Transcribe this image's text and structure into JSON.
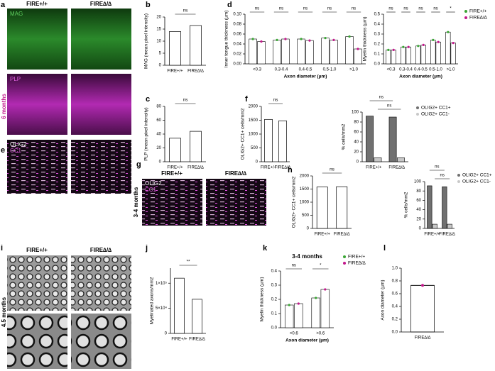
{
  "panel_letters": [
    "a",
    "b",
    "c",
    "d",
    "e",
    "f",
    "g",
    "h",
    "i",
    "j",
    "k",
    "l"
  ],
  "images": {
    "a": {
      "headers": [
        "FIRE+/+",
        "FIRE∆/∆"
      ],
      "stains": [
        "MAG",
        "PLP"
      ],
      "age": "6 months"
    },
    "e": {
      "stains": [
        "OLIG2",
        "CC1"
      ]
    },
    "g": {
      "headers": [
        "FIRE+/+",
        "FIRE∆/∆"
      ],
      "stains": [
        "OLIG2",
        "CC1"
      ],
      "age": "3-4 months"
    },
    "i": {
      "headers": [
        "FIRE+/+",
        "FIRE∆/∆"
      ],
      "age": "4.5 months"
    }
  },
  "chart_data": [
    {
      "type": "bar",
      "ylabel": "MAG (mean pixel intensity)",
      "categories": [
        "FIRE+/+",
        "FIRE∆/∆"
      ],
      "values": [
        14,
        16.5
      ],
      "color": "#ffffff",
      "ylim": [
        0,
        20
      ],
      "yticks": [
        0,
        5,
        10,
        15,
        20
      ],
      "comparison": "ns"
    },
    {
      "type": "bar",
      "ylabel": "PLP (mean pixel intensity)",
      "categories": [
        "FIRE+/+",
        "FIRE∆/∆"
      ],
      "values": [
        34,
        44
      ],
      "color": "#ffffff",
      "ylim": [
        0,
        80
      ],
      "yticks": [
        0,
        20,
        40,
        60,
        80
      ],
      "comparison": "ns"
    },
    {
      "type": "bar",
      "ylabel": "Inner tongue thickness (µm)",
      "xlabel": "Axon diameter (µm)",
      "categories": [
        "<0.3",
        "0.3-0.4",
        "0.4-0.5",
        "0.5-1.0",
        ">1.0"
      ],
      "series": [
        {
          "name": "FIRE+/+",
          "color": "#3aa635",
          "values": [
            0.05,
            0.048,
            0.05,
            0.052,
            0.055
          ]
        },
        {
          "name": "FIRE∆/∆",
          "color": "#c2188b",
          "values": [
            0.045,
            0.05,
            0.047,
            0.048,
            0.03
          ]
        }
      ],
      "bar_fill": "#ffffff",
      "ylim": [
        0,
        0.1
      ],
      "yticks": [
        {
          "value": 0,
          "label": "0.00"
        },
        0.02,
        0.04,
        0.06,
        0.08,
        {
          "value": 0.1,
          "label": "0.10"
        }
      ],
      "category_annotations": [
        "ns",
        "ns",
        "ns",
        "ns",
        "ns"
      ]
    },
    {
      "type": "bar",
      "ylabel": "Myelin thickness (µm)",
      "xlabel": "Axon diameter (µm)",
      "categories": [
        "<0.3",
        "0.3-0.4",
        "0.4-0.5",
        "0.5-1.0",
        ">1.0"
      ],
      "series": [
        {
          "name": "FIRE+/+",
          "color": "#3aa635",
          "values": [
            0.14,
            0.17,
            0.18,
            0.24,
            0.32
          ]
        },
        {
          "name": "FIRE∆/∆",
          "color": "#c2188b",
          "values": [
            0.14,
            0.17,
            0.19,
            0.22,
            0.21
          ]
        }
      ],
      "bar_fill": "#ffffff",
      "ylim": [
        0,
        0.5
      ],
      "yticks": [
        {
          "value": 0,
          "label": "0.0"
        },
        0.1,
        0.2,
        0.3,
        0.4,
        0.5
      ],
      "category_annotations": [
        "ns",
        "ns",
        "ns",
        "ns",
        "*"
      ]
    },
    {
      "type": "bar",
      "ylabel": "OLIG2+ CC1+ cells/mm2",
      "categories": [
        "FIRE+/+",
        "FIRE∆/∆"
      ],
      "values": [
        1530,
        1480
      ],
      "color": "#ffffff",
      "ylim": [
        0,
        2000
      ],
      "yticks": [
        0,
        500,
        1000,
        1500,
        2000
      ],
      "comparison": "ns"
    },
    {
      "type": "bar",
      "ylabel": "% cells/mm2",
      "categories": [
        "FIRE+/+",
        "FIRE∆/∆"
      ],
      "series": [
        {
          "name": "OLIG2+ CC1+",
          "color": "#707070",
          "values": [
            92,
            90
          ]
        },
        {
          "name": "OLIG2+ CC1-",
          "color": "#c8c8c8",
          "values": [
            8,
            8
          ]
        }
      ],
      "ylim": [
        0,
        100
      ],
      "yticks": [
        0,
        20,
        40,
        60,
        80,
        100
      ],
      "series_annotations": [
        "ns",
        "ns"
      ]
    },
    {
      "type": "bar",
      "ylabel": "OLIG2+ CC1+ cells/mm2",
      "categories": [
        "FIRE+/+",
        "FIRE∆/∆"
      ],
      "values": [
        1580,
        1590
      ],
      "color": "#ffffff",
      "ylim": [
        0,
        2000
      ],
      "yticks": [
        0,
        500,
        1000,
        1500,
        2000
      ],
      "comparison": "ns"
    },
    {
      "type": "bar",
      "ylabel": "% cells/mm2",
      "categories": [
        "FIRE+/+",
        "FIRE∆/∆"
      ],
      "series": [
        {
          "name": "OLIG2+ CC1+",
          "color": "#707070",
          "values": [
            91,
            89
          ]
        },
        {
          "name": "OLIG2+ CC1-",
          "color": "#c8c8c8",
          "values": [
            9,
            9
          ]
        }
      ],
      "ylim": [
        0,
        100
      ],
      "yticks": [
        0,
        20,
        40,
        60,
        80,
        100
      ],
      "series_annotations": [
        "ns",
        "ns"
      ]
    },
    {
      "type": "bar",
      "ylabel": "Myelinated axons/mm2",
      "categories": [
        "FIRE+/+",
        "FIRE∆/∆"
      ],
      "values": [
        110000,
        68000
      ],
      "color": "#ffffff",
      "ylim": [
        0,
        130000
      ],
      "yticks": [
        0,
        {
          "value": 50000,
          "label": "5×10⁴"
        },
        {
          "value": 100000,
          "label": "1×10⁵"
        }
      ],
      "comparison": "**"
    },
    {
      "type": "bar",
      "title": "3-4 months",
      "ylabel": "Myelin thickness (µm)",
      "xlabel": "Axon diameter (µm)",
      "categories": [
        "<0.6",
        ">0.6"
      ],
      "series": [
        {
          "name": "FIRE+/+",
          "color": "#3aa635",
          "values": [
            0.16,
            0.21
          ]
        },
        {
          "name": "FIRE∆/∆",
          "color": "#c2188b",
          "values": [
            0.17,
            0.27
          ]
        }
      ],
      "bar_fill": "#ffffff",
      "ylim": [
        0,
        0.4
      ],
      "yticks": [
        {
          "value": 0,
          "label": "0.0"
        },
        0.1,
        0.2,
        0.3,
        0.4
      ],
      "category_annotations": [
        "ns",
        "*"
      ]
    },
    {
      "type": "bar",
      "ylabel": "Axon diameter (µm)",
      "categories": [
        "FIRE∆/∆"
      ],
      "values": [
        0.73
      ],
      "color": "#c2188b",
      "ylim": [
        0,
        1
      ],
      "yticks": [
        {
          "value": 0,
          "label": "0.0"
        },
        0.2,
        0.4,
        0.6,
        0.8,
        {
          "value": 1,
          "label": "1.0"
        }
      ]
    }
  ]
}
